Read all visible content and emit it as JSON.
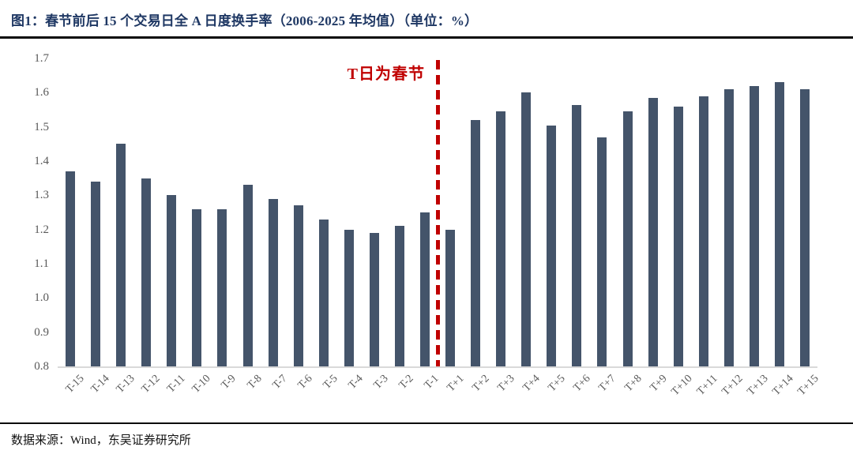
{
  "colors": {
    "navy": "#1F3864",
    "bar": "#44546A",
    "red": "#C00000",
    "axis_gray": "#595959"
  },
  "header": {
    "title": "图1：春节前后 15 个交易日全 A 日度换手率（2006-2025 年均值）（单位：%）"
  },
  "footer": {
    "source": "数据来源：Wind，东吴证券研究所"
  },
  "chart_data": {
    "type": "bar",
    "title": "春节前后15个交易日全A日度换手率（2006-2025年均值）",
    "unit": "%",
    "categories": [
      "T-15",
      "T-14",
      "T-13",
      "T-12",
      "T-11",
      "T-10",
      "T-9",
      "T-8",
      "T-7",
      "T-6",
      "T-5",
      "T-4",
      "T-3",
      "T-2",
      "T-1",
      "T+1",
      "T+2",
      "T+3",
      "T+4",
      "T+5",
      "T+6",
      "T+7",
      "T+8",
      "T+9",
      "T+10",
      "T+11",
      "T+12",
      "T+13",
      "T+14",
      "T+15"
    ],
    "values": [
      1.37,
      1.34,
      1.45,
      1.35,
      1.3,
      1.26,
      1.26,
      1.33,
      1.29,
      1.27,
      1.23,
      1.2,
      1.19,
      1.21,
      1.25,
      1.2,
      1.52,
      1.545,
      1.6,
      1.505,
      1.565,
      1.47,
      1.545,
      1.585,
      1.56,
      1.59,
      1.61,
      1.62,
      1.63,
      1.61
    ],
    "ylim": [
      0.8,
      1.7
    ],
    "yticks": [
      0.8,
      0.9,
      1.0,
      1.1,
      1.2,
      1.3,
      1.4,
      1.5,
      1.6,
      1.7
    ],
    "grid": false,
    "legend": false,
    "annotation": {
      "text": "T日为春节",
      "divider_index": 15
    }
  }
}
